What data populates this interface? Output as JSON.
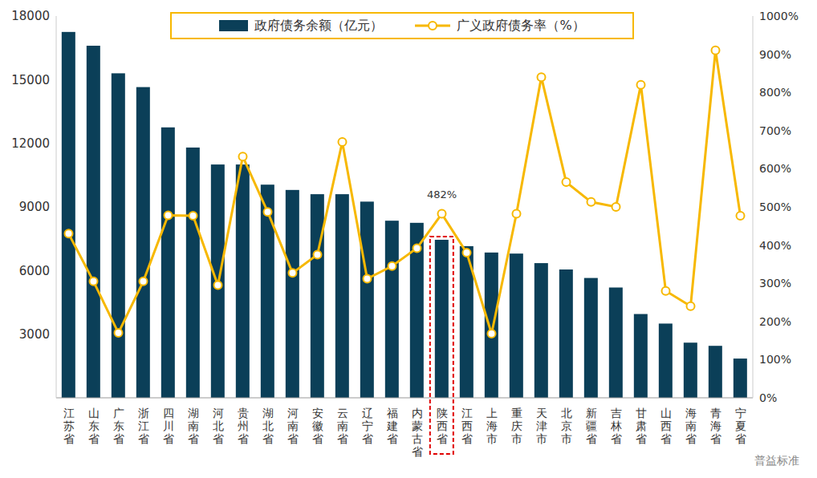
{
  "chart_data": {
    "type": "bar",
    "categories": [
      "江苏省",
      "山东省",
      "广东省",
      "浙江省",
      "四川省",
      "湖南省",
      "河北省",
      "贵州省",
      "湖北省",
      "河南省",
      "安徽省",
      "云南省",
      "辽宁省",
      "福建省",
      "内蒙古省",
      "陕西省",
      "江西省",
      "上海市",
      "重庆市",
      "天津市",
      "北京市",
      "新疆省",
      "吉林省",
      "甘肃省",
      "山西省",
      "海南省",
      "青海省",
      "宁夏省"
    ],
    "series": [
      {
        "name": "政府债务余额（亿元）",
        "type": "bar",
        "color": "#0b3f58",
        "values": [
          17250,
          16600,
          15300,
          14650,
          12750,
          11800,
          11000,
          11000,
          10050,
          9800,
          9600,
          9600,
          9250,
          8350,
          8250,
          7450,
          7150,
          6850,
          6800,
          6350,
          6050,
          5650,
          5200,
          3950,
          3500,
          2600,
          2450,
          1850
        ]
      },
      {
        "name": "广义政府债务率（%）",
        "type": "line",
        "axis": "y2",
        "color": "#f7b800",
        "marker": "circle",
        "values": [
          430,
          305,
          170,
          305,
          478,
          477,
          295,
          632,
          487,
          327,
          375,
          670,
          312,
          345,
          392,
          482,
          380,
          168,
          482,
          840,
          565,
          513,
          500,
          820,
          280,
          240,
          910,
          477
        ]
      }
    ],
    "ylim": [
      0,
      18000
    ],
    "yticks": [
      0,
      3000,
      6000,
      9000,
      12000,
      15000,
      18000
    ],
    "y2lim": [
      0,
      1000
    ],
    "y2ticks": [
      {
        "value": 0,
        "label": "0%"
      },
      {
        "value": 100,
        "label": "100%"
      },
      {
        "value": 200,
        "label": "200%"
      },
      {
        "value": 300,
        "label": "300%"
      },
      {
        "value": 400,
        "label": "400%"
      },
      {
        "value": 500,
        "label": "500%"
      },
      {
        "value": 600,
        "label": "600%"
      },
      {
        "value": 700,
        "label": "700%"
      },
      {
        "value": 800,
        "label": "800%"
      },
      {
        "value": 900,
        "label": "900%"
      },
      {
        "value": 1000,
        "label": "1000%"
      }
    ],
    "annotations": [
      {
        "text": "482%",
        "category": "陕西省"
      }
    ],
    "highlight": "陕西省",
    "watermark": "普益标准",
    "grid": false,
    "legend": "top"
  }
}
